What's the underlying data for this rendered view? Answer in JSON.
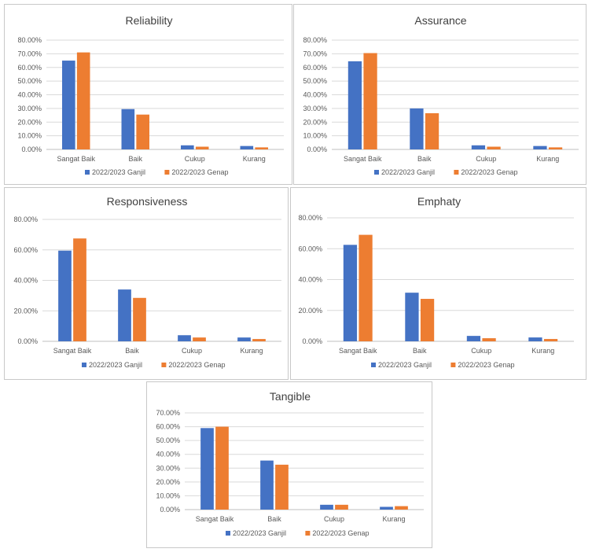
{
  "chart_data": [
    {
      "type": "bar",
      "title": "Reliability",
      "categories": [
        "Sangat Baik",
        "Baik",
        "Cukup",
        "Kurang"
      ],
      "series": [
        {
          "name": "2022/2023 Ganjil",
          "values": [
            65.0,
            29.5,
            3.0,
            2.5
          ]
        },
        {
          "name": "2022/2023 Genap",
          "values": [
            71.0,
            25.5,
            2.0,
            1.5
          ]
        }
      ],
      "ylim": [
        0,
        80
      ],
      "ytick_step": 10,
      "ytick_decimals": 2,
      "legend": "bottom",
      "grid": true
    },
    {
      "type": "bar",
      "title": "Assurance",
      "categories": [
        "Sangat Baik",
        "Baik",
        "Cukup",
        "Kurang"
      ],
      "series": [
        {
          "name": "2022/2023 Ganjil",
          "values": [
            64.5,
            30.0,
            3.0,
            2.5
          ]
        },
        {
          "name": "2022/2023 Genap",
          "values": [
            70.5,
            26.5,
            2.0,
            1.5
          ]
        }
      ],
      "ylim": [
        0,
        80
      ],
      "ytick_step": 10,
      "ytick_decimals": 2,
      "legend": "bottom",
      "grid": true
    },
    {
      "type": "bar",
      "title": "Responsiveness",
      "categories": [
        "Sangat Baik",
        "Baik",
        "Cukup",
        "Kurang"
      ],
      "series": [
        {
          "name": "2022/2023 Ganjil",
          "values": [
            59.5,
            34.0,
            4.0,
            2.5
          ]
        },
        {
          "name": "2022/2023 Genap",
          "values": [
            67.5,
            28.5,
            2.5,
            1.5
          ]
        }
      ],
      "ylim": [
        0,
        80
      ],
      "ytick_step": 20,
      "ytick_decimals": 2,
      "legend": "bottom",
      "grid": true
    },
    {
      "type": "bar",
      "title": "Emphaty",
      "categories": [
        "Sangat Baik",
        "Baik",
        "Cukup",
        "Kurang"
      ],
      "series": [
        {
          "name": "2022/2023 Ganjil",
          "values": [
            62.5,
            31.5,
            3.5,
            2.5
          ]
        },
        {
          "name": "2022/2023 Genap",
          "values": [
            69.0,
            27.5,
            2.0,
            1.5
          ]
        }
      ],
      "ylim": [
        0,
        80
      ],
      "ytick_step": 20,
      "ytick_decimals": 2,
      "legend": "bottom",
      "grid": true
    },
    {
      "type": "bar",
      "title": "Tangible",
      "categories": [
        "Sangat Baik",
        "Baik",
        "Cukup",
        "Kurang"
      ],
      "series": [
        {
          "name": "2022/2023 Ganjil",
          "values": [
            59.0,
            35.5,
            3.5,
            2.0
          ]
        },
        {
          "name": "2022/2023 Genap",
          "values": [
            60.0,
            32.5,
            3.5,
            2.5
          ]
        }
      ],
      "ylim": [
        0,
        70
      ],
      "ytick_step": 10,
      "ytick_decimals": 2,
      "legend": "bottom",
      "grid": true
    }
  ],
  "colors": {
    "series": [
      "#4472c4",
      "#ed7d31"
    ],
    "grid": "#d9d9d9",
    "axis": "#bfbfbf",
    "text": "#595959",
    "title": "#404040"
  }
}
